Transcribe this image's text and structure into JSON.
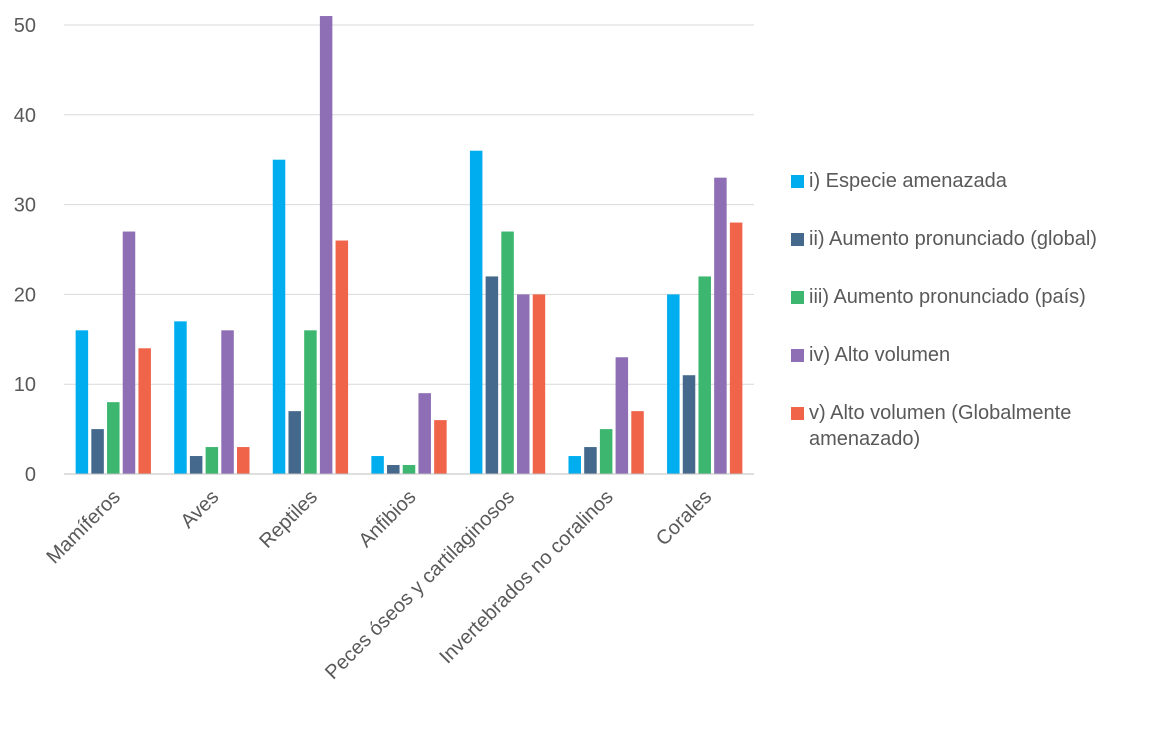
{
  "chart_data": {
    "type": "bar",
    "title": "",
    "xlabel": "",
    "ylabel": "",
    "ylim": [
      0,
      50
    ],
    "yticks": [
      0,
      10,
      20,
      30,
      40,
      50
    ],
    "grid": true,
    "legend_position": "right",
    "categories": [
      "Mamíferos",
      "Aves",
      "Reptiles",
      "Anfibios",
      "Peces óseos y cartilaginosos",
      "Invertebrados no coralinos",
      "Corales"
    ],
    "series": [
      {
        "name": "i) Especie amenazada",
        "color": "#00AEEF",
        "values": [
          16,
          17,
          35,
          2,
          36,
          2,
          20
        ]
      },
      {
        "name": "ii) Aumento pronunciado (global)",
        "color": "#44698C",
        "values": [
          5,
          2,
          7,
          1,
          22,
          3,
          11
        ]
      },
      {
        "name": "iii) Aumento pronunciado (país)",
        "color": "#3DB66F",
        "values": [
          8,
          3,
          16,
          1,
          27,
          5,
          22
        ]
      },
      {
        "name": "iv) Alto volumen",
        "color": "#8E6FB5",
        "values": [
          27,
          16,
          51,
          9,
          20,
          13,
          33
        ]
      },
      {
        "name": "v) Alto volumen (Globalmente amenazado)",
        "color": "#F0644A",
        "values": [
          14,
          3,
          26,
          6,
          20,
          7,
          28
        ]
      }
    ]
  },
  "styles": {
    "gridline_color": "#D9D9D9",
    "axis_color": "#BFBFBF",
    "text_color": "#595959"
  }
}
